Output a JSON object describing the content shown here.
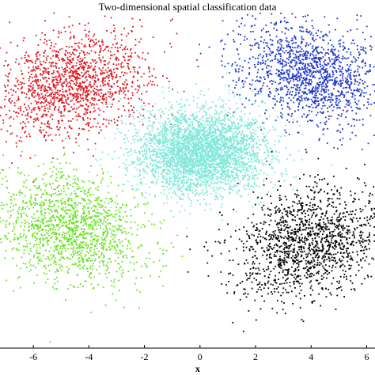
{
  "chart_data": {
    "type": "scatter",
    "title": "Two-dimensional spatial classification data",
    "xlabel": "x",
    "ylabel": "",
    "xlim": [
      -7.2,
      6.3
    ],
    "ylim": [
      -7.5,
      5.0
    ],
    "grid": false,
    "x_ticks": [
      -6,
      -4,
      -2,
      0,
      2,
      4,
      6
    ],
    "x_tick_labels": [
      "-6",
      "-4",
      "-2",
      "0",
      "2",
      "4",
      "6"
    ],
    "series": [
      {
        "color": "#e0141e",
        "center": [
          -4.6,
          2.3
        ],
        "std": [
          1.35,
          0.95
        ],
        "rotation_deg": 22,
        "count": 1500
      },
      {
        "color": "#1a33c8",
        "center": [
          4.0,
          2.7
        ],
        "std": [
          1.35,
          0.9
        ],
        "rotation_deg": -18,
        "count": 1500
      },
      {
        "color": "#7fe8da",
        "center": [
          0.0,
          -0.2
        ],
        "std": [
          1.2,
          0.8
        ],
        "rotation_deg": 0,
        "count": 3500
      },
      {
        "color": "#66e21e",
        "center": [
          -4.7,
          -3.0
        ],
        "std": [
          1.35,
          0.95
        ],
        "rotation_deg": -20,
        "count": 1500
      },
      {
        "color": "#000000",
        "center": [
          3.9,
          -3.6
        ],
        "std": [
          1.4,
          0.95
        ],
        "rotation_deg": 22,
        "count": 1500
      }
    ]
  }
}
